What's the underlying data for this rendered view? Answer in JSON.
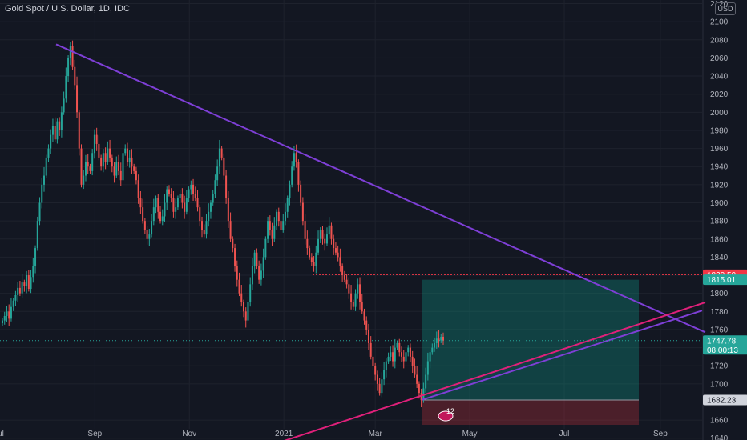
{
  "header": {
    "title": "Gold Spot / U.S. Dollar, 1D, IDC",
    "currency": "USD"
  },
  "colors": {
    "background": "#131722",
    "grid": "#1e222d",
    "up": "#26a69a",
    "down": "#ef5350",
    "downtrend": "#7e3fd6",
    "support": "#e0207a",
    "stop": "#f23645",
    "target": "#0f9d8a"
  },
  "chart_data": {
    "type": "candlestick",
    "title": "Gold Spot / U.S. Dollar, 1D, IDC",
    "y_axis": {
      "ticks": [
        2120,
        2100,
        2080,
        2060,
        2040,
        2020,
        2000,
        1980,
        1960,
        1940,
        1920,
        1900,
        1880,
        1860,
        1840,
        1820,
        1800,
        1780,
        1760,
        1740,
        1720,
        1700,
        1680,
        1660,
        1640
      ],
      "range": [
        1638,
        2124
      ]
    },
    "x_axis": {
      "ticks": [
        "Jul",
        "Sep",
        "Nov",
        "2021",
        "Mar",
        "May",
        "Jul",
        "Sep"
      ]
    },
    "closes": [
      1770,
      1775,
      1780,
      1772,
      1785,
      1792,
      1798,
      1806,
      1800,
      1812,
      1808,
      1820,
      1805,
      1818,
      1830,
      1850,
      1880,
      1900,
      1920,
      1930,
      1950,
      1960,
      1975,
      1985,
      1970,
      1990,
      1980,
      2000,
      2015,
      2040,
      2060,
      2073,
      2050,
      2030,
      2000,
      1960,
      1920,
      1930,
      1945,
      1940,
      1935,
      1955,
      1975,
      1965,
      1950,
      1940,
      1955,
      1945,
      1960,
      1950,
      1940,
      1930,
      1945,
      1935,
      1925,
      1955,
      1960,
      1945,
      1950,
      1940,
      1935,
      1925,
      1905,
      1895,
      1880,
      1870,
      1860,
      1865,
      1880,
      1895,
      1905,
      1890,
      1880,
      1885,
      1900,
      1915,
      1910,
      1905,
      1890,
      1895,
      1905,
      1910,
      1900,
      1890,
      1905,
      1915,
      1920,
      1910,
      1905,
      1895,
      1880,
      1870,
      1865,
      1880,
      1890,
      1900,
      1910,
      1925,
      1940,
      1960,
      1950,
      1930,
      1905,
      1880,
      1860,
      1850,
      1830,
      1815,
      1800,
      1790,
      1780,
      1770,
      1790,
      1810,
      1830,
      1845,
      1830,
      1815,
      1825,
      1840,
      1860,
      1880,
      1870,
      1860,
      1875,
      1890,
      1880,
      1870,
      1880,
      1890,
      1905,
      1920,
      1940,
      1955,
      1945,
      1920,
      1900,
      1880,
      1860,
      1850,
      1840,
      1835,
      1830,
      1845,
      1860,
      1870,
      1860,
      1855,
      1865,
      1875,
      1860,
      1850,
      1845,
      1840,
      1830,
      1820,
      1815,
      1810,
      1800,
      1790,
      1785,
      1800,
      1810,
      1790,
      1780,
      1770,
      1760,
      1745,
      1730,
      1720,
      1710,
      1700,
      1690,
      1705,
      1715,
      1725,
      1730,
      1735,
      1725,
      1740,
      1745,
      1735,
      1730,
      1725,
      1735,
      1740,
      1730,
      1720,
      1710,
      1700,
      1690,
      1682,
      1695,
      1710,
      1725,
      1735,
      1740,
      1745,
      1750,
      1748,
      1752,
      1747.78
    ],
    "series": [
      {
        "name": "Downtrend line",
        "points": [
          [
            "2020-08-07",
            2075
          ],
          [
            "2021-09-30",
            1757
          ]
        ]
      },
      {
        "name": "Support line",
        "points": [
          [
            "2021-01-01",
            1637
          ],
          [
            "2021-09-30",
            1790
          ]
        ]
      },
      {
        "name": "Entry level",
        "value": 1682.23
      },
      {
        "name": "Target",
        "value": 1815.01
      },
      {
        "name": "Resistance level",
        "value": 1820.59
      },
      {
        "name": "Last price",
        "value": 1747.78
      }
    ],
    "price_labels": {
      "resistance": "1820.59",
      "target": "1815.01",
      "last": "1747.78",
      "countdown": "08:00:13",
      "entry": "1682.23"
    },
    "annotation": {
      "badge": "12"
    },
    "grid": true
  }
}
